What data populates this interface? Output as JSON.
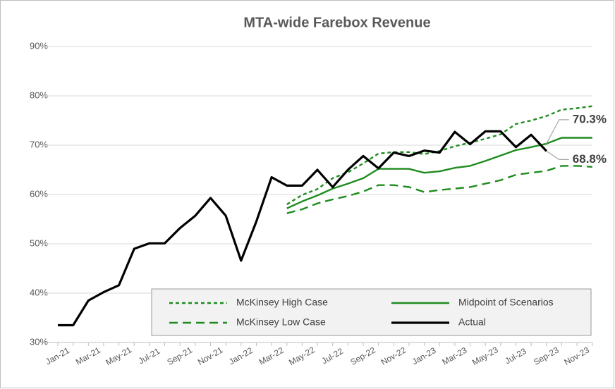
{
  "chart_data": {
    "type": "line",
    "title": "MTA-wide Farebox Revenue",
    "categories": [
      "Jan-21",
      null,
      "Mar-21",
      null,
      "May-21",
      null,
      "Jul-21",
      null,
      "Sep-21",
      null,
      "Nov-21",
      null,
      "Jan-22",
      null,
      "Mar-22",
      null,
      "May-22",
      null,
      "Jul-22",
      null,
      "Sep-22",
      null,
      "Nov-22",
      null,
      "Jan-23",
      null,
      "Mar-23",
      null,
      "May-23",
      null,
      "Jul-23",
      null,
      "Sep-23",
      null,
      "Nov-23",
      null
    ],
    "ylim": [
      30,
      90
    ],
    "yticks": [
      {
        "value": 30,
        "label": "30%"
      },
      {
        "value": 40,
        "label": "40%"
      },
      {
        "value": 50,
        "label": "50%"
      },
      {
        "value": 60,
        "label": "60%"
      },
      {
        "value": 70,
        "label": "70%"
      },
      {
        "value": 80,
        "label": "80%"
      },
      {
        "value": 90,
        "label": "90%"
      }
    ],
    "grid": true,
    "legend": "bottom-right",
    "series": [
      {
        "name": "McKinsey High Case",
        "color": "#1e8c1e",
        "dash": "short",
        "values": [
          null,
          null,
          null,
          null,
          null,
          null,
          null,
          null,
          null,
          null,
          null,
          null,
          null,
          null,
          null,
          58,
          59.9,
          61.1,
          63.3,
          64.5,
          66.3,
          68.3,
          68.6,
          68.6,
          68.2,
          68.8,
          69.8,
          70.5,
          71.3,
          72.2,
          74.3,
          75,
          75.9,
          77.2,
          77.5,
          77.9
        ]
      },
      {
        "name": "Midpoint of Scenarios",
        "color": "#1e8c1e",
        "dash": "solid",
        "values": [
          null,
          null,
          null,
          null,
          null,
          null,
          null,
          null,
          null,
          null,
          null,
          null,
          null,
          null,
          null,
          57.2,
          58.6,
          59.8,
          61.2,
          62.2,
          63.3,
          65.2,
          65.2,
          65.2,
          64.4,
          64.7,
          65.4,
          65.8,
          66.8,
          67.9,
          69,
          69.6,
          70.3,
          71.5,
          71.5,
          71.5
        ],
        "value_labels": [
          null,
          null,
          null,
          null,
          null,
          null,
          null,
          null,
          null,
          null,
          null,
          null,
          null,
          null,
          null,
          null,
          null,
          null,
          null,
          null,
          null,
          null,
          null,
          null,
          null,
          null,
          null,
          null,
          null,
          null,
          null,
          null,
          "70.3%",
          null,
          null,
          null
        ]
      },
      {
        "name": "McKinsey Low Case",
        "color": "#1e8c1e",
        "dash": "long",
        "values": [
          null,
          null,
          null,
          null,
          null,
          null,
          null,
          null,
          null,
          null,
          null,
          null,
          null,
          null,
          null,
          56.2,
          57,
          58.2,
          59,
          59.7,
          60.6,
          61.9,
          61.9,
          61.5,
          60.5,
          60.9,
          61.2,
          61.5,
          62.2,
          62.9,
          64,
          64.4,
          64.8,
          65.8,
          65.8,
          65.6
        ]
      },
      {
        "name": "Actual",
        "color": "#000000",
        "dash": "solid",
        "values": [
          33.5,
          33.5,
          38.5,
          40.2,
          41.6,
          49,
          50.1,
          50.1,
          53.2,
          55.7,
          59.3,
          55.7,
          46.6,
          54.5,
          63.5,
          61.8,
          61.8,
          65,
          61.5,
          65,
          67.8,
          65.3,
          68.5,
          67.8,
          68.9,
          68.5,
          72.7,
          70.2,
          72.8,
          72.8,
          69.6,
          72.1,
          68.8,
          null,
          null,
          null
        ],
        "value_labels": [
          null,
          null,
          null,
          null,
          null,
          null,
          null,
          null,
          null,
          null,
          null,
          null,
          null,
          null,
          null,
          null,
          null,
          null,
          null,
          null,
          null,
          null,
          null,
          null,
          null,
          null,
          null,
          null,
          null,
          null,
          null,
          null,
          "68.8%",
          null,
          null,
          null
        ]
      }
    ]
  }
}
